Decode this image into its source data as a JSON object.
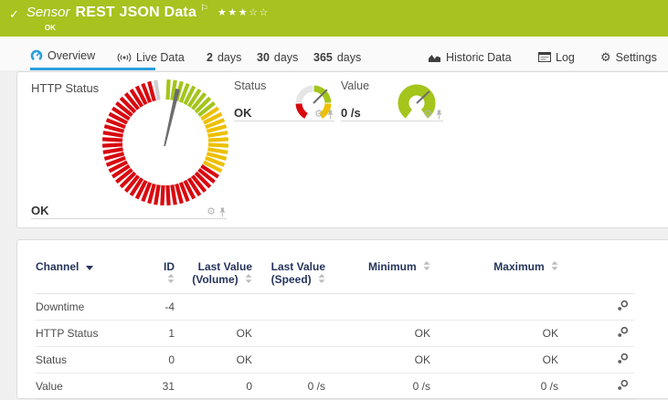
{
  "icons": {
    "check": "✓",
    "flag": "⚐",
    "gear": "⚙"
  },
  "header": {
    "kind": "Sensor",
    "title": "REST JSON Data",
    "stars": "★★★☆☆",
    "status": "OK"
  },
  "tabs": [
    {
      "label": "Overview",
      "icon": "gauge-icon",
      "active": true
    },
    {
      "label": "Live Data",
      "icon": "broadcast-icon"
    },
    {
      "bold": "2",
      "label": "days"
    },
    {
      "bold": "30",
      "label": "days"
    },
    {
      "bold": "365",
      "label": "days"
    },
    {
      "label": "Historic Data",
      "icon": "area-chart-icon"
    },
    {
      "label": "Log",
      "icon": "log-icon"
    },
    {
      "label": "Settings",
      "icon": "gear-icon"
    }
  ],
  "colors": {
    "header_green": "#a8c21f",
    "accent_blue": "#2b9fdd",
    "gauge_green": "#a3c51c",
    "gauge_yellow": "#edc001",
    "gauge_red": "#d8090f",
    "needle_gray": "#6d6d6d",
    "table_header_text": "#25345c"
  },
  "gauges": {
    "http_status": {
      "label": "HTTP Status",
      "value": "OK",
      "type": "ticks",
      "size": 150,
      "outer": 69,
      "inner": 47,
      "tick_step": 6,
      "tick_start": -9,
      "tick_end": 345,
      "tick_width": 4.2,
      "needle_deg": 13,
      "needle_len": 60,
      "segments": [
        {
          "from": -12,
          "to": -7,
          "color": "#cfcfcf"
        },
        {
          "from": 0,
          "to": 57,
          "color": "#a3c51c"
        },
        {
          "from": 57,
          "to": 123,
          "color": "#edc001"
        },
        {
          "from": 123,
          "to": 348,
          "color": "#d8090f"
        }
      ]
    },
    "status": {
      "label": "Status",
      "value": "OK",
      "type": "arcs",
      "size": 46,
      "radius": 16,
      "stroke": 7,
      "needle_deg": 45,
      "needle_len": 21,
      "needle_width": 2,
      "segments": [
        {
          "from": 272,
          "to": 358,
          "color": "#e6e6e6"
        },
        {
          "from": 2,
          "to": 88,
          "color": "#a3c51c"
        },
        {
          "from": 92,
          "to": 150,
          "color": "#edc001"
        },
        {
          "from": 210,
          "to": 268,
          "color": "#d8090f"
        }
      ]
    },
    "value": {
      "label": "Value",
      "value": "0 /s",
      "type": "arcs",
      "size": 46,
      "radius": 14.5,
      "stroke": 12,
      "needle_deg": 47,
      "needle_len": 19,
      "needle_width": 2,
      "segments": [
        {
          "from": 216,
          "to": 504,
          "color": "#a3c51c"
        }
      ]
    }
  },
  "table": {
    "headers": [
      {
        "label": "Channel",
        "sorted": "desc"
      },
      {
        "label": "ID"
      },
      {
        "label": "Last Value\n(Volume)"
      },
      {
        "label": "Last Value\n(Speed)"
      },
      {
        "label": "Minimum"
      },
      {
        "label": "Maximum"
      }
    ],
    "rows": [
      {
        "channel": "Downtime",
        "id": "-4",
        "last_value_volume": "",
        "last_value_speed": "",
        "minimum": "",
        "maximum": ""
      },
      {
        "channel": "HTTP Status",
        "id": "1",
        "last_value_volume": "OK",
        "last_value_speed": "",
        "minimum": "OK",
        "maximum": "OK"
      },
      {
        "channel": "Status",
        "id": "0",
        "last_value_volume": "OK",
        "last_value_speed": "",
        "minimum": "OK",
        "maximum": "OK"
      },
      {
        "channel": "Value",
        "id": "31",
        "last_value_volume": "0",
        "last_value_speed": "0 /s",
        "minimum": "0 /s",
        "maximum": "0 /s"
      }
    ]
  }
}
